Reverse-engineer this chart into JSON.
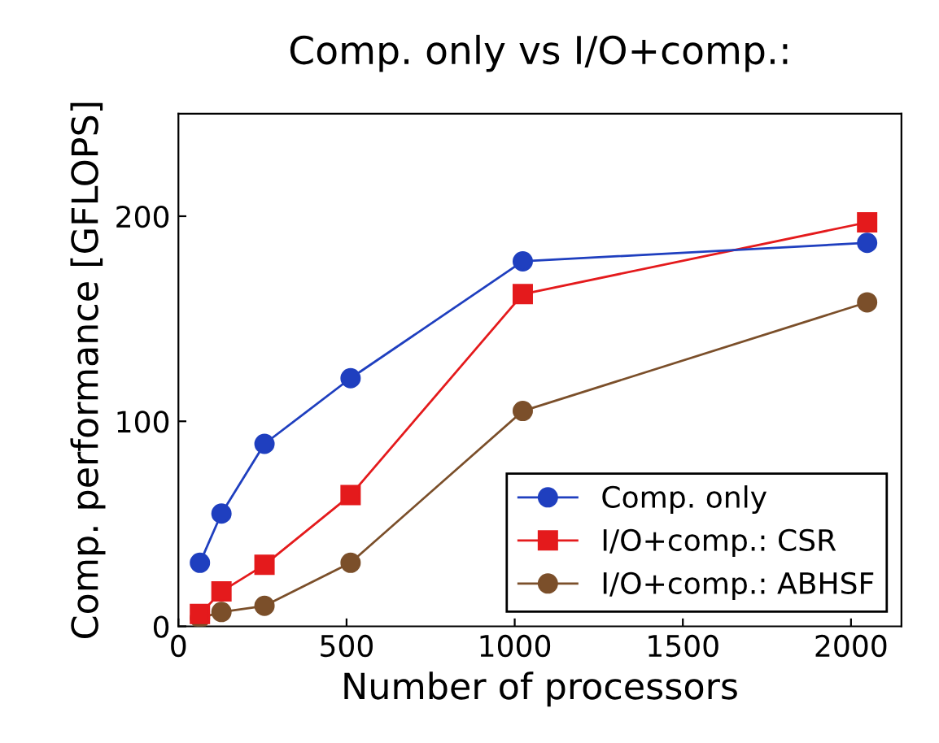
{
  "chart_data": {
    "type": "line",
    "title": "Comp. only vs I/O+comp.:",
    "xlabel": "Number of processors",
    "ylabel": "Comp. performance [GFLOPS]",
    "x": [
      64,
      128,
      256,
      512,
      1024,
      2048
    ],
    "series": [
      {
        "name": "Comp. only",
        "color": "#1f3fbf",
        "marker": "circle",
        "values": [
          31,
          55,
          89,
          121,
          178,
          187
        ]
      },
      {
        "name": "I/O+comp.: CSR",
        "color": "#e41a1c",
        "marker": "square",
        "values": [
          6,
          17,
          30,
          64,
          162,
          197
        ]
      },
      {
        "name": "I/O+comp.: ABHSF",
        "color": "#7b4f2a",
        "marker": "circle",
        "values": [
          4,
          7,
          10,
          31,
          105,
          158
        ]
      }
    ],
    "xlim": [
      0,
      2150
    ],
    "xticks": [
      0,
      500,
      1000,
      1500,
      2000
    ],
    "ylim": [
      0,
      250
    ],
    "yticks": [
      0,
      100,
      200
    ],
    "grid": false,
    "legend": "bottom right",
    "line_style": "solid"
  }
}
